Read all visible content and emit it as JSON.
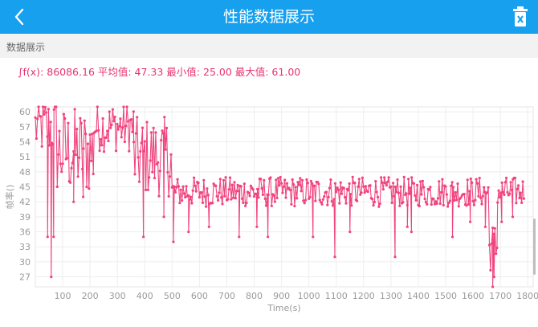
{
  "appbar": {
    "title": "性能数据展示",
    "back_icon": "chevron-left-icon",
    "delete_icon": "trash-icon",
    "color": "#16a0ee"
  },
  "section": {
    "title": "数据展示"
  },
  "stats": {
    "text": "∫f(x): 86086.16 平均值: 47.33 最小值: 25.00 最大值: 61.00"
  },
  "chart_data": {
    "type": "line",
    "xlabel": "Time(s)",
    "ylabel": "帧率()",
    "xlim": [
      0,
      1820
    ],
    "ylim": [
      25,
      61
    ],
    "x_ticks": [
      100,
      200,
      300,
      400,
      500,
      600,
      700,
      800,
      900,
      1000,
      1100,
      1200,
      1300,
      1400,
      1500,
      1600,
      1700,
      1800
    ],
    "y_ticks": [
      27,
      30,
      33,
      36,
      39,
      42,
      45,
      48,
      51,
      54,
      57,
      60
    ],
    "grid": true,
    "line_color": "#f0447e",
    "series": [
      {
        "segments": [
          {
            "x_start": 0,
            "x_end": 80,
            "mean": 57,
            "spread": 6,
            "dips": [
              [
                45,
                35
              ],
              [
                58,
                27
              ],
              [
                67,
                35
              ]
            ]
          },
          {
            "x_start": 80,
            "x_end": 215,
            "mean": 52,
            "spread": 9,
            "dips": [
              [
                140,
                42
              ],
              [
                175,
                43
              ]
            ]
          },
          {
            "x_start": 215,
            "x_end": 360,
            "mean": 57,
            "spread": 5,
            "dips": []
          },
          {
            "x_start": 360,
            "x_end": 500,
            "mean": 51,
            "spread": 8,
            "dips": [
              [
                395,
                35
              ],
              [
                470,
                39
              ]
            ]
          },
          {
            "x_start": 500,
            "x_end": 1660,
            "mean": 44,
            "spread": 3,
            "dips": [
              [
                505,
                34
              ],
              [
                560,
                36
              ],
              [
                635,
                37
              ],
              [
                745,
                35
              ],
              [
                810,
                37
              ],
              [
                850,
                35
              ],
              [
                1015,
                35
              ],
              [
                1095,
                31
              ],
              [
                1150,
                36
              ],
              [
                1315,
                31
              ],
              [
                1360,
                37
              ],
              [
                1375,
                36
              ],
              [
                1525,
                35
              ],
              [
                1590,
                38
              ],
              [
                1645,
                37
              ]
            ]
          },
          {
            "x_start": 1660,
            "x_end": 1690,
            "mean": 33,
            "spread": 5,
            "dips": [
              [
                1672,
                25
              ],
              [
                1677,
                27
              ]
            ]
          },
          {
            "x_start": 1690,
            "x_end": 1790,
            "mean": 44,
            "spread": 3,
            "dips": [
              [
                1705,
                38
              ],
              [
                1745,
                39
              ]
            ]
          }
        ]
      }
    ]
  }
}
